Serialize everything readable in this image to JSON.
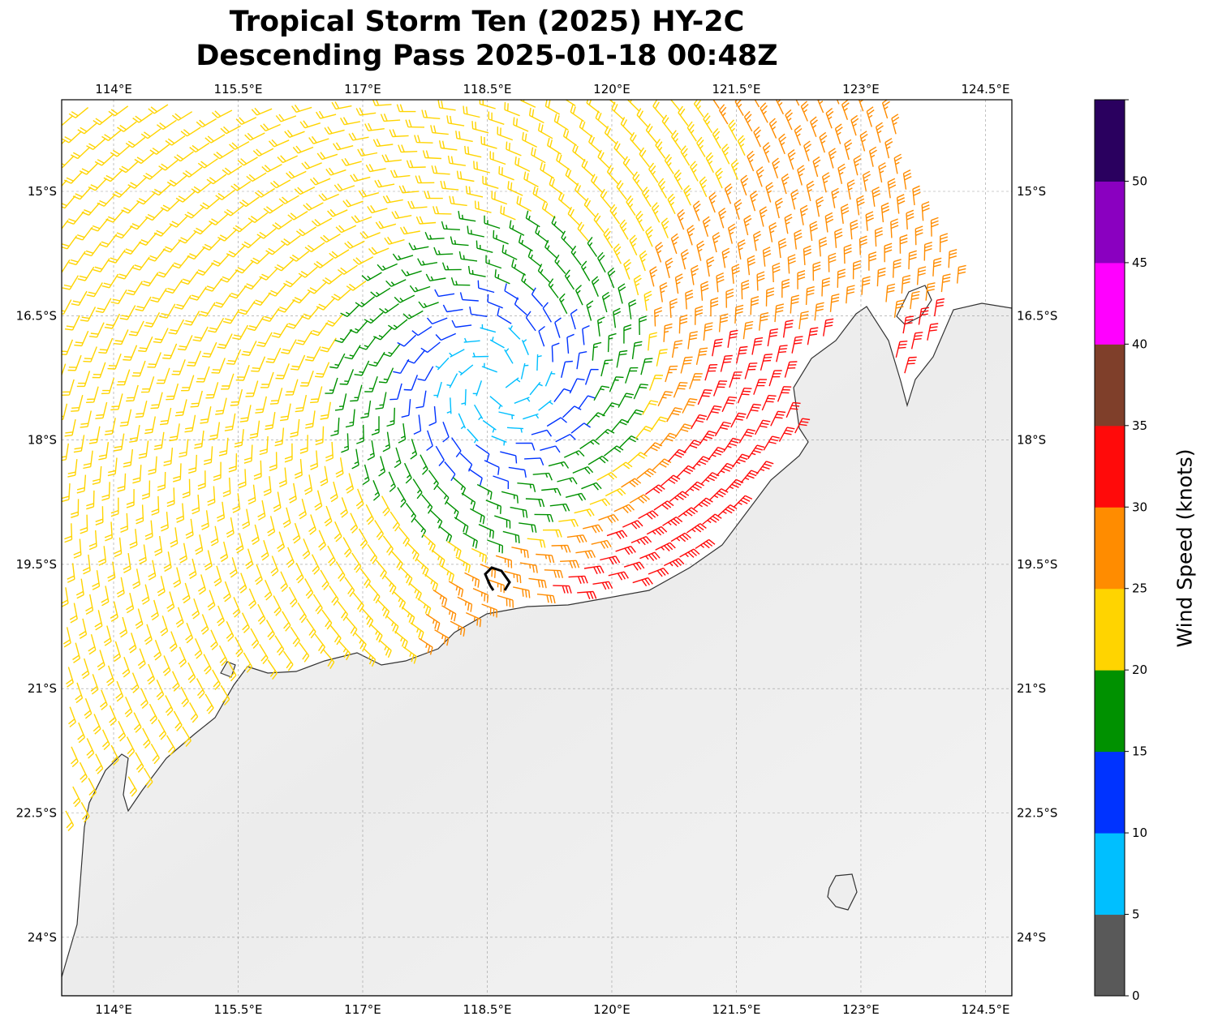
{
  "title": {
    "line1": "Tropical Storm Ten (2025) HY-2C",
    "line2": "Descending Pass 2025-01-18 00:48Z"
  },
  "chart_data": {
    "type": "wind_barb_map",
    "lon_range": [
      113.37,
      124.82
    ],
    "lat_range": [
      -13.9,
      -24.71
    ],
    "lon_ticks": [
      {
        "value": 114,
        "label": "114°E"
      },
      {
        "value": 115.5,
        "label": "115.5°E"
      },
      {
        "value": 117,
        "label": "117°E"
      },
      {
        "value": 118.5,
        "label": "118.5°E"
      },
      {
        "value": 120,
        "label": "120°E"
      },
      {
        "value": 121.5,
        "label": "121.5°E"
      },
      {
        "value": 123,
        "label": "123°E"
      },
      {
        "value": 124.5,
        "label": "124.5°E"
      }
    ],
    "lat_ticks": [
      {
        "value": 15,
        "label": "15°S"
      },
      {
        "value": 16.5,
        "label": "16.5°S"
      },
      {
        "value": 18,
        "label": "18°S"
      },
      {
        "value": 19.5,
        "label": "19.5°S"
      },
      {
        "value": 21,
        "label": "21°S"
      },
      {
        "value": 22.5,
        "label": "22.5°S"
      },
      {
        "value": 24,
        "label": "24°S"
      }
    ],
    "grid": true,
    "storm_center": {
      "lon": 118.6,
      "lat": -19.65
    },
    "colorbar": {
      "label": "Wind Speed (knots)",
      "bounds": [
        0,
        5,
        10,
        15,
        20,
        25,
        30,
        35,
        40,
        45,
        50,
        55
      ],
      "tick_labels": [
        "0",
        "5",
        "10",
        "15",
        "20",
        "25",
        "30",
        "35",
        "40",
        "45",
        "50"
      ],
      "colors": [
        "#595959",
        "#00bfff",
        "#0033ff",
        "#009100",
        "#ffd400",
        "#ff8c00",
        "#ff0a0a",
        "#7f3f2a",
        "#ff00ff",
        "#8a00c0",
        "#2a005f"
      ]
    }
  }
}
